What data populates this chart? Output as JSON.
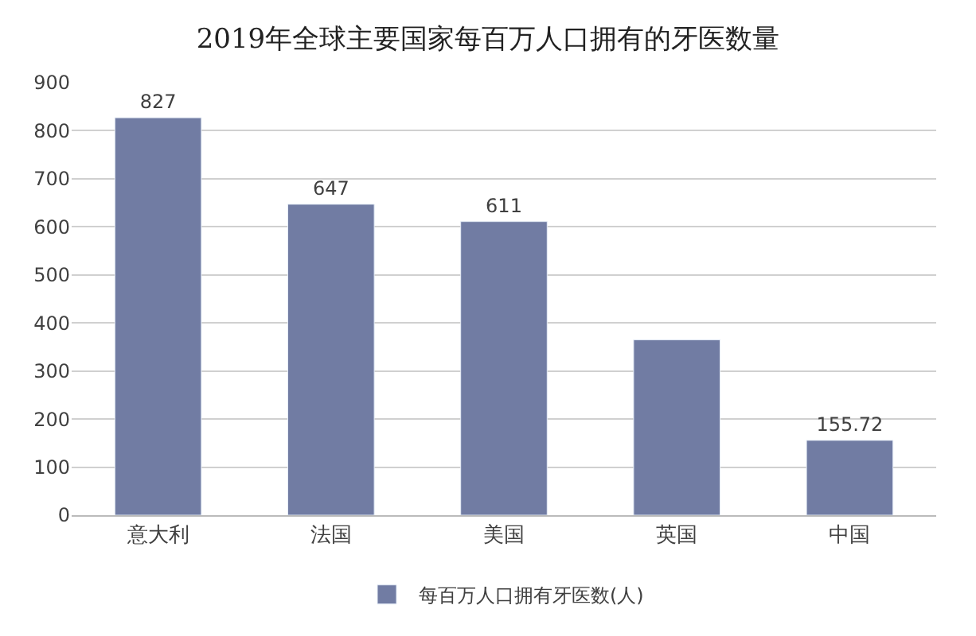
{
  "chart_data": {
    "type": "bar",
    "title": "2019年全球主要国家每百万人口拥有的牙医数量",
    "categories": [
      "意大利",
      "法国",
      "美国",
      "英国",
      "中国"
    ],
    "series": [
      {
        "name": "每百万人口拥有牙医数(人)",
        "color": "#717ca3",
        "values": [
          827,
          647,
          611,
          365,
          155.72
        ],
        "value_labels": [
          "827",
          "647",
          "611",
          null,
          "155.72"
        ]
      }
    ],
    "ylim": [
      0,
      900
    ],
    "yticks": [
      0,
      100,
      200,
      300,
      400,
      500,
      600,
      700,
      800,
      900
    ],
    "grid": "y",
    "legend": "bottom"
  }
}
